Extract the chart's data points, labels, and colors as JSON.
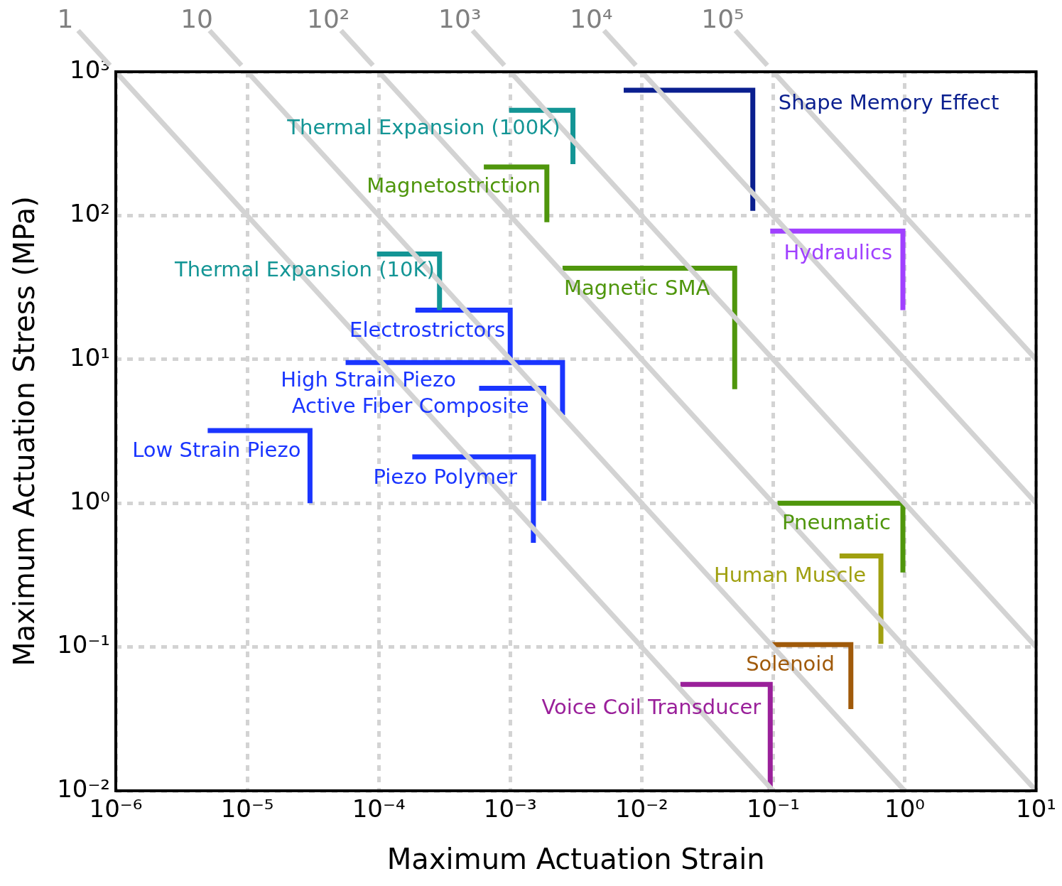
{
  "chart_data": {
    "type": "line",
    "xlabel": "Maximum Actuation Strain",
    "ylabel": "Maximum Actuation Stress (MPa)",
    "log": "xy",
    "grid": true,
    "marker": "none",
    "line_style": "solid",
    "xlim": [
      1e-06,
      10
    ],
    "ylim": [
      0.01,
      1000
    ],
    "xticks": [
      {
        "value": 1e-06,
        "label": "10⁻⁶"
      },
      {
        "value": 1e-05,
        "label": "10⁻⁵"
      },
      {
        "value": 0.0001,
        "label": "10⁻⁴"
      },
      {
        "value": 0.001,
        "label": "10⁻³"
      },
      {
        "value": 0.01,
        "label": "10⁻²"
      },
      {
        "value": 0.1,
        "label": "10⁻¹"
      },
      {
        "value": 1,
        "label": "10⁰"
      },
      {
        "value": 10,
        "label": "10¹"
      }
    ],
    "yticks": [
      {
        "value": 0.01,
        "label": "10⁻²"
      },
      {
        "value": 0.1,
        "label": "10⁻¹"
      },
      {
        "value": 1,
        "label": "10⁰"
      },
      {
        "value": 10,
        "label": "10¹"
      },
      {
        "value": 100,
        "label": "10²"
      },
      {
        "value": 1000,
        "label": "10³"
      }
    ],
    "series": [
      {
        "name": "1",
        "color": "#d3d3d3",
        "x": [
          1e-06,
          0.1
        ],
        "values": [
          1000,
          0.01
        ]
      },
      {
        "name": "10",
        "color": "#d3d3d3",
        "x": [
          1e-05,
          1
        ],
        "values": [
          1000,
          0.01
        ]
      },
      {
        "name": "10²",
        "color": "#d3d3d3",
        "x": [
          0.0001,
          10
        ],
        "values": [
          1000,
          0.01
        ]
      },
      {
        "name": "10³",
        "color": "#d3d3d3",
        "x": [
          0.001,
          10
        ],
        "values": [
          1000,
          0.1
        ]
      },
      {
        "name": "10⁴",
        "color": "#d3d3d3",
        "x": [
          0.01,
          10
        ],
        "values": [
          1000,
          1
        ]
      },
      {
        "name": "10⁵",
        "color": "#d3d3d3",
        "x": [
          0.1,
          10
        ],
        "values": [
          1000,
          10
        ]
      },
      {
        "name": "Shape Memory Effect",
        "color": "#0a1f8f",
        "x": [
          0.0073,
          0.07,
          0.07
        ],
        "values": [
          745,
          745,
          108
        ]
      },
      {
        "name": "Thermal Expansion (100K)",
        "color": "#139595",
        "x": [
          0.00098,
          0.003,
          0.003
        ],
        "values": [
          540,
          540,
          228
        ]
      },
      {
        "name": "Magnetostriction",
        "color": "#4f960c",
        "x": [
          0.00063,
          0.0019,
          0.0019
        ],
        "values": [
          218,
          218,
          90
        ]
      },
      {
        "name": "Thermal Expansion (10K)",
        "color": "#139595",
        "x": [
          9.7e-05,
          0.00029,
          0.00029
        ],
        "values": [
          54,
          54,
          22
        ]
      },
      {
        "name": "Electrostrictors",
        "color": "#1a35ff",
        "x": [
          0.00019,
          0.001,
          0.001
        ],
        "values": [
          22,
          22,
          9.2
        ]
      },
      {
        "name": "High Strain Piezo",
        "color": "#1a35ff",
        "x": [
          5.6e-05,
          0.0025,
          0.0025
        ],
        "values": [
          9.5,
          9.5,
          4.1
        ]
      },
      {
        "name": "Active Fiber Composite",
        "color": "#1a35ff",
        "x": [
          0.00058,
          0.0018,
          0.0018
        ],
        "values": [
          6.3,
          6.3,
          1.04
        ]
      },
      {
        "name": "Low Strain Piezo",
        "color": "#1a35ff",
        "x": [
          5e-06,
          3e-05,
          3e-05
        ],
        "values": [
          3.2,
          3.2,
          1
        ]
      },
      {
        "name": "Piezo Polymer",
        "color": "#1a35ff",
        "x": [
          0.00018,
          0.0015,
          0.0015
        ],
        "values": [
          2.1,
          2.1,
          0.53
        ]
      },
      {
        "name": "Magnetic SMA",
        "color": "#4f960c",
        "x": [
          0.0025,
          0.051,
          0.051
        ],
        "values": [
          43,
          43,
          6.2
        ]
      },
      {
        "name": "Hydraulics",
        "color": "#a040ff",
        "x": [
          0.095,
          0.97,
          0.97
        ],
        "values": [
          78,
          78,
          22
        ]
      },
      {
        "name": "Pneumatic",
        "color": "#4f960c",
        "x": [
          0.108,
          0.97,
          0.97
        ],
        "values": [
          1,
          1,
          0.33
        ]
      },
      {
        "name": "Human Muscle",
        "color": "#a0a010",
        "x": [
          0.32,
          0.66,
          0.66
        ],
        "values": [
          0.43,
          0.43,
          0.105
        ]
      },
      {
        "name": "Solenoid",
        "color": "#a05a0a",
        "x": [
          0.098,
          0.39,
          0.39
        ],
        "values": [
          0.104,
          0.104,
          0.037
        ]
      },
      {
        "name": "Voice Coil Transducer",
        "color": "#9a209a",
        "x": [
          0.0197,
          0.095,
          0.095
        ],
        "values": [
          0.055,
          0.055,
          0.01
        ]
      }
    ]
  }
}
